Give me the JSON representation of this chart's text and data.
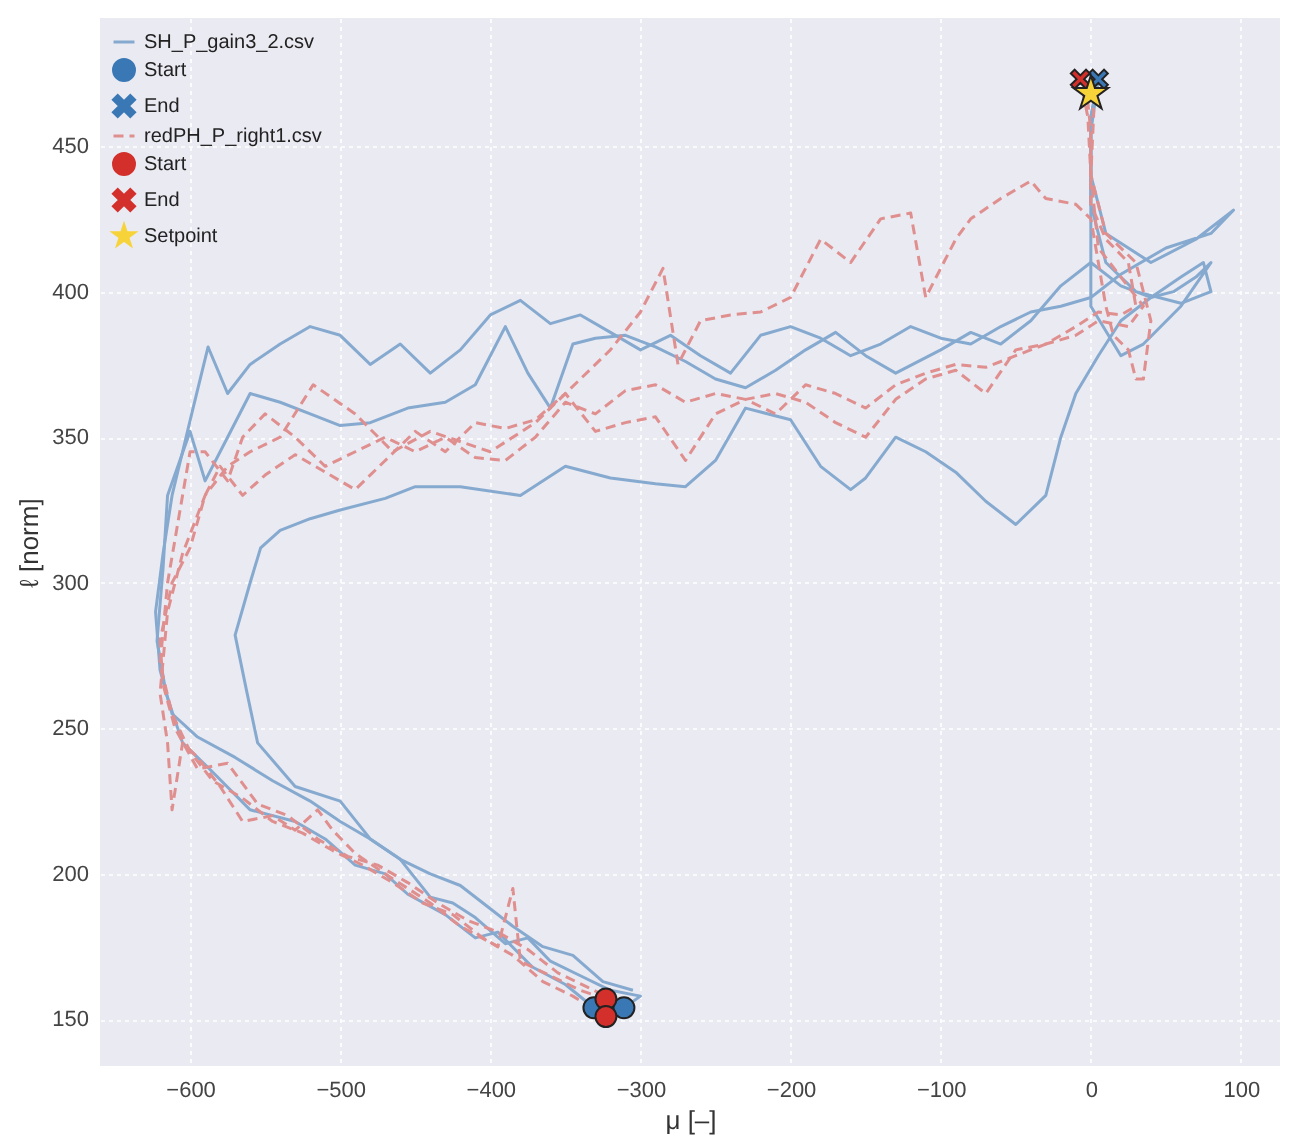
{
  "chart_data": {
    "type": "line",
    "xlabel": "μ [–]",
    "ylabel": "ℓ [norm]",
    "xlim": [
      -660,
      126
    ],
    "ylim": [
      134,
      494
    ],
    "xticks": [
      -600,
      -500,
      -400,
      -300,
      -200,
      -100,
      0,
      100
    ],
    "yticks": [
      150,
      200,
      250,
      300,
      350,
      400,
      450
    ],
    "grid": true,
    "legend": "top left",
    "series": [
      {
        "name": "SH_P_gain3_2.csv",
        "line_style": "solid",
        "color": "#86aacf",
        "x": [
          -311,
          -300,
          -320,
          -340,
          -360,
          -375,
          -390,
          -410,
          -425,
          -440,
          -460,
          -480,
          -500,
          -520,
          -545,
          -570,
          -595,
          -612,
          -620,
          -623,
          -618,
          -612,
          -605,
          -598,
          -588,
          -575,
          -560,
          -540,
          -520,
          -500,
          -480,
          -460,
          -440,
          -420,
          -400,
          -380,
          -360,
          -340,
          -320,
          -300,
          -280,
          -260,
          -240,
          -220,
          -200,
          -180,
          -160,
          -140,
          -120,
          -100,
          -80,
          -60,
          -40,
          -20,
          0,
          20,
          50,
          80,
          95,
          70,
          40,
          10,
          0,
          0,
          5
        ],
        "values": [
          154,
          158,
          160,
          165,
          170,
          178,
          176,
          185,
          190,
          192,
          205,
          212,
          218,
          225,
          232,
          240,
          247,
          255,
          270,
          290,
          310,
          330,
          345,
          360,
          381,
          365,
          375,
          382,
          388,
          385,
          375,
          382,
          372,
          380,
          392,
          397,
          389,
          392,
          386,
          380,
          385,
          378,
          372,
          385,
          388,
          384,
          378,
          382,
          388,
          384,
          382,
          388,
          393,
          395,
          398,
          406,
          415,
          420,
          428,
          418,
          410,
          420,
          440,
          460,
          473
        ]
      },
      {
        "name": null,
        "line_style": "solid",
        "color": "#86aacf",
        "x": [
          -331,
          -350,
          -372,
          -395,
          -410,
          -430,
          -455,
          -470,
          -490,
          -510,
          -530,
          -560,
          -585,
          -605,
          -616,
          -622,
          -618,
          -615,
          -600,
          -590,
          -575,
          -560,
          -540,
          -520,
          -500,
          -480,
          -455,
          -430,
          -410,
          -400,
          -390,
          -375,
          -360,
          -345,
          -330,
          -310,
          -290,
          -270,
          -250,
          -230,
          -210,
          -190,
          -170,
          -150,
          -130,
          -100,
          -80,
          -60,
          -40,
          -20,
          0,
          20,
          40,
          60,
          75,
          80,
          60,
          30,
          10,
          0,
          0,
          5
        ],
        "values": [
          154,
          162,
          168,
          180,
          178,
          186,
          193,
          200,
          203,
          212,
          218,
          222,
          235,
          245,
          262,
          280,
          305,
          330,
          352,
          335,
          350,
          365,
          362,
          358,
          354,
          355,
          360,
          362,
          368,
          378,
          388,
          372,
          360,
          382,
          384,
          385,
          381,
          376,
          370,
          367,
          373,
          380,
          386,
          378,
          372,
          380,
          386,
          382,
          390,
          402,
          410,
          402,
          398,
          405,
          410,
          400,
          396,
          400,
          410,
          430,
          455,
          473
        ]
      },
      {
        "name": null,
        "line_style": "solid",
        "color": "#86aacf",
        "x": [
          -305,
          -325,
          -345,
          -365,
          -385,
          -400,
          -420,
          -440,
          -460,
          -480,
          -500,
          -530,
          -555,
          -562,
          -570,
          -560,
          -553,
          -540,
          -520,
          -500,
          -470,
          -450,
          -420,
          -380,
          -350,
          -320,
          -290,
          -270,
          -250,
          -230,
          -200,
          -180,
          -160,
          -150,
          -130,
          -110,
          -90,
          -70,
          -50,
          -30,
          -20,
          -10,
          5,
          20,
          40,
          55,
          70,
          80,
          60,
          35,
          20,
          0,
          0,
          0,
          5
        ],
        "values": [
          160,
          163,
          172,
          175,
          182,
          188,
          196,
          200,
          205,
          212,
          225,
          230,
          245,
          262,
          282,
          300,
          312,
          318,
          322,
          325,
          329,
          333,
          333,
          330,
          340,
          336,
          334,
          333,
          342,
          360,
          356,
          340,
          332,
          336,
          350,
          345,
          338,
          328,
          320,
          330,
          350,
          365,
          378,
          390,
          398,
          400,
          405,
          410,
          395,
          382,
          378,
          395,
          430,
          460,
          473
        ]
      },
      {
        "name": "Start",
        "type": "scatter",
        "marker": "circle",
        "color": "#3a78b5",
        "x": [
          -331,
          -311
        ],
        "values": [
          154,
          154
        ]
      },
      {
        "name": "End",
        "type": "scatter",
        "marker": "cross",
        "color": "#3a78b5",
        "x": [
          5
        ],
        "values": [
          473
        ]
      },
      {
        "name": "redPH_P_right1.csv",
        "line_style": "dashed",
        "color": "#e08f8f",
        "x": [
          -323,
          -340,
          -360,
          -380,
          -385,
          -395,
          -420,
          -440,
          -455,
          -470,
          -490,
          -505,
          -515,
          -530,
          -545,
          -565,
          -580,
          -595,
          -605,
          -612,
          -615,
          -620,
          -615,
          -605,
          -590,
          -575,
          -560,
          -540,
          -518,
          -490,
          -465,
          -440,
          -400,
          -370,
          -340,
          -320,
          -300,
          -285,
          -275,
          -260,
          -240,
          -220,
          -200,
          -180,
          -160,
          -140,
          -120,
          -110,
          -90,
          -80,
          -60,
          -40,
          -30,
          -10,
          0,
          5,
          10,
          15,
          25,
          30,
          35,
          40,
          30,
          10,
          0,
          -2,
          -7
        ],
        "values": [
          157,
          160,
          165,
          170,
          195,
          175,
          182,
          190,
          195,
          200,
          207,
          215,
          222,
          215,
          220,
          218,
          230,
          240,
          245,
          222,
          245,
          262,
          290,
          310,
          330,
          340,
          345,
          350,
          368,
          358,
          345,
          352,
          345,
          355,
          370,
          380,
          393,
          408,
          375,
          390,
          392,
          393,
          398,
          418,
          410,
          425,
          427,
          398,
          418,
          425,
          432,
          438,
          432,
          430,
          425,
          410,
          395,
          385,
          380,
          370,
          370,
          390,
          410,
          420,
          440,
          460,
          473
        ]
      },
      {
        "name": null,
        "line_style": "dashed",
        "color": "#e08f8f",
        "x": [
          -323,
          -345,
          -365,
          -385,
          -405,
          -425,
          -445,
          -465,
          -485,
          -505,
          -525,
          -545,
          -565,
          -585,
          -600,
          -612,
          -620,
          -615,
          -600,
          -590,
          -575,
          -565,
          -550,
          -530,
          -510,
          -490,
          -470,
          -450,
          -430,
          -410,
          -390,
          -370,
          -350,
          -330,
          -310,
          -290,
          -270,
          -250,
          -230,
          -210,
          -190,
          -170,
          -150,
          -130,
          -110,
          -90,
          -70,
          -50,
          -30,
          -10,
          5,
          20,
          30,
          25,
          10,
          0,
          0,
          -3
        ],
        "values": [
          151,
          158,
          163,
          172,
          178,
          186,
          190,
          197,
          203,
          208,
          214,
          218,
          226,
          232,
          242,
          255,
          272,
          300,
          345,
          345,
          335,
          350,
          358,
          350,
          340,
          345,
          350,
          345,
          350,
          343,
          342,
          350,
          362,
          358,
          366,
          368,
          362,
          365,
          363,
          358,
          368,
          365,
          360,
          368,
          372,
          375,
          374,
          378,
          382,
          388,
          393,
          392,
          395,
          410,
          418,
          430,
          455,
          470
        ]
      },
      {
        "name": null,
        "line_style": "dashed",
        "color": "#e08f8f",
        "x": [
          -315,
          -335,
          -355,
          -375,
          -395,
          -415,
          -435,
          -455,
          -475,
          -495,
          -515,
          -535,
          -555,
          -575,
          -595,
          -610,
          -618,
          -620,
          -612,
          -600,
          -590,
          -580,
          -565,
          -550,
          -530,
          -510,
          -490,
          -470,
          -450,
          -430,
          -410,
          -390,
          -370,
          -350,
          -330,
          -310,
          -290,
          -270,
          -250,
          -230,
          -210,
          -190,
          -170,
          -150,
          -130,
          -110,
          -90,
          -70,
          -50,
          -30,
          -10,
          5,
          25,
          35,
          20,
          5,
          0,
          2,
          -3
        ],
        "values": [
          156,
          161,
          166,
          174,
          180,
          184,
          190,
          197,
          203,
          206,
          212,
          220,
          224,
          238,
          236,
          250,
          265,
          280,
          300,
          312,
          330,
          340,
          330,
          337,
          344,
          338,
          332,
          342,
          352,
          345,
          355,
          353,
          356,
          365,
          352,
          355,
          357,
          342,
          358,
          363,
          365,
          362,
          355,
          350,
          363,
          370,
          373,
          365,
          380,
          382,
          385,
          390,
          388,
          395,
          405,
          415,
          440,
          462,
          471
        ]
      },
      {
        "name": "Start",
        "type": "scatter",
        "marker": "circle",
        "color": "#d3302c",
        "x": [
          -323,
          -323
        ],
        "values": [
          157,
          151
        ]
      },
      {
        "name": "End",
        "type": "scatter",
        "marker": "cross",
        "color": "#d3302c",
        "x": [
          -7
        ],
        "values": [
          473
        ]
      },
      {
        "name": "Setpoint",
        "type": "scatter",
        "marker": "star",
        "color": "#f7d33a",
        "x": [
          0
        ],
        "values": [
          468
        ]
      }
    ]
  }
}
